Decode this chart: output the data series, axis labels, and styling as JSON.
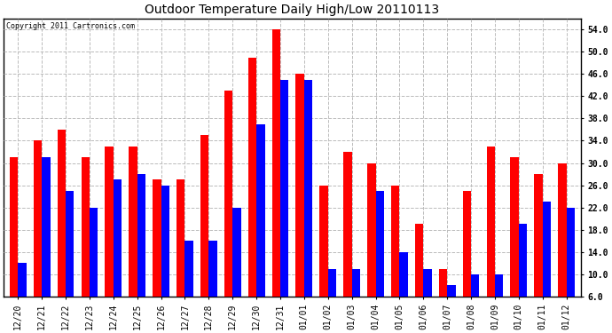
{
  "title": "Outdoor Temperature Daily High/Low 20110113",
  "copyright": "Copyright 2011 Cartronics.com",
  "categories": [
    "12/20",
    "12/21",
    "12/22",
    "12/23",
    "12/24",
    "12/25",
    "12/26",
    "12/27",
    "12/28",
    "12/29",
    "12/30",
    "12/31",
    "01/01",
    "01/02",
    "01/03",
    "01/04",
    "01/05",
    "01/06",
    "01/07",
    "01/08",
    "01/09",
    "01/10",
    "01/11",
    "01/12"
  ],
  "highs": [
    31,
    34,
    36,
    31,
    33,
    33,
    27,
    27,
    35,
    43,
    49,
    54,
    46,
    26,
    32,
    30,
    26,
    19,
    11,
    25,
    33,
    31,
    28,
    30
  ],
  "lows": [
    12,
    31,
    25,
    22,
    27,
    28,
    26,
    16,
    16,
    22,
    37,
    45,
    45,
    11,
    11,
    25,
    14,
    11,
    8,
    10,
    10,
    19,
    23,
    22
  ],
  "high_color": "#ff0000",
  "low_color": "#0000ff",
  "bg_color": "#ffffff",
  "grid_color": "#bbbbbb",
  "ylim": [
    6.0,
    56.0
  ],
  "yticks": [
    6.0,
    10.0,
    14.0,
    18.0,
    22.0,
    26.0,
    30.0,
    34.0,
    38.0,
    42.0,
    46.0,
    50.0,
    54.0
  ],
  "ymin": 6.0,
  "bar_width": 0.35,
  "title_fontsize": 10,
  "tick_fontsize": 7,
  "copyright_fontsize": 6
}
